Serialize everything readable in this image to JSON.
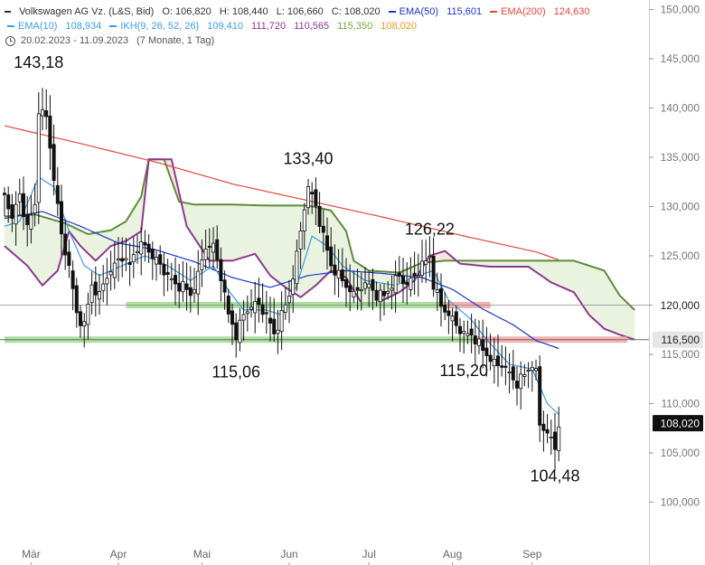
{
  "header": {
    "line1": {
      "instrument": "Volkswagen AG Vz. (L&S, Bid)",
      "open": "O: 106,820",
      "high": "H: 108,440",
      "low": "L: 106,660",
      "close": "C: 108,020",
      "ema50_label": "EMA(50)",
      "ema50_value": "115,601",
      "ema200_label": "EMA(200)",
      "ema200_value": "124,630"
    },
    "line2": {
      "ema10_label": "EMA(10)",
      "ema10_value": "108,934",
      "ikh_label": "IKH(9, 26, 52, 26)",
      "ikh_v1": "109,410",
      "ikh_v2": "111,720",
      "ikh_v3": "110,565",
      "ikh_v4": "115,350",
      "ikh_v5": "108,020"
    },
    "line3": {
      "range": "20.02.2023 - 11.09.2023",
      "period": "(7 Monate, 1 Tag)"
    }
  },
  "colors": {
    "ema10": "#3d9be9",
    "ema50": "#1a35c9",
    "ema200": "#e0483a",
    "ikh_tenkan": "#3d9be9",
    "ikh_span_a": "#5f8a3a",
    "ikh_span_b": "#8b3a8b",
    "ikh_v4": "#7aa637",
    "ikh_v5": "#e89a1e",
    "cloud_bull": "#e9f3df",
    "cloud_bear": "#fbe4e4",
    "support_green": "#9edb8f",
    "support_red": "#f4a5a5",
    "candle": "#111111"
  },
  "chart_data": {
    "type": "candlestick",
    "title": "Volkswagen AG Vz. (L&S, Bid)",
    "date_range": "20.02.2023 - 11.09.2023",
    "y_axis": {
      "ylim": [
        97,
        151
      ],
      "ticks": [
        100,
        105,
        110,
        115,
        120,
        125,
        130,
        135,
        140,
        145,
        150
      ],
      "tick_labels": [
        "100,000",
        "105,000",
        "110,000",
        "115,000",
        "120,000",
        "125,000",
        "130,000",
        "135,000",
        "140,000",
        "145,000",
        "150,000"
      ],
      "position": "right"
    },
    "x_axis": {
      "labels": [
        "Mär",
        "Apr",
        "Mai",
        "Jun",
        "Jul",
        "Aug",
        "Sep"
      ],
      "label_index": [
        7,
        30,
        52,
        75,
        96,
        118,
        139
      ]
    },
    "horizontal_lines": [
      {
        "value": 120.0,
        "label": "120,000",
        "style": "thin-gray"
      },
      {
        "value": 116.5,
        "label": "116,500",
        "style": "zone-gray"
      }
    ],
    "support_zones": [
      {
        "from_index": 32,
        "to_index": 118,
        "value": 120.0,
        "color": "green"
      },
      {
        "from_index": 116,
        "to_index": 128,
        "value": 120.0,
        "color": "red"
      },
      {
        "from_index": 0,
        "to_index": 124,
        "value": 116.5,
        "color": "green"
      },
      {
        "from_index": 124,
        "to_index": 164,
        "value": 116.5,
        "color": "red"
      }
    ],
    "current_price": {
      "value": 108.02,
      "label": "108,020"
    },
    "annotations": [
      {
        "label": "143,18",
        "index": 9,
        "value": 143.18,
        "position": "above"
      },
      {
        "label": "133,40",
        "index": 80,
        "value": 133.4,
        "position": "above"
      },
      {
        "label": "126,22",
        "index": 112,
        "value": 126.22,
        "position": "above"
      },
      {
        "label": "115,06",
        "index": 61,
        "value": 115.06,
        "position": "below"
      },
      {
        "label": "115,20",
        "index": 121,
        "value": 115.2,
        "position": "below"
      },
      {
        "label": "104,48",
        "index": 145,
        "value": 104.48,
        "position": "below"
      }
    ],
    "anchors": [
      [
        0,
        131
      ],
      [
        2,
        129
      ],
      [
        4,
        131
      ],
      [
        6,
        128
      ],
      [
        8,
        130
      ],
      [
        9,
        140
      ],
      [
        11,
        139
      ],
      [
        13,
        133
      ],
      [
        15,
        127
      ],
      [
        17,
        124
      ],
      [
        19,
        119
      ],
      [
        21,
        118
      ],
      [
        23,
        122
      ],
      [
        25,
        121
      ],
      [
        27,
        123
      ],
      [
        29,
        124
      ],
      [
        31,
        125
      ],
      [
        33,
        124
      ],
      [
        35,
        126
      ],
      [
        37,
        126
      ],
      [
        39,
        125
      ],
      [
        41,
        124
      ],
      [
        43,
        123
      ],
      [
        45,
        122
      ],
      [
        47,
        122
      ],
      [
        49,
        121
      ],
      [
        51,
        123
      ],
      [
        53,
        126
      ],
      [
        55,
        126
      ],
      [
        57,
        123
      ],
      [
        59,
        119
      ],
      [
        61,
        117
      ],
      [
        63,
        119
      ],
      [
        65,
        120
      ],
      [
        67,
        120
      ],
      [
        69,
        119
      ],
      [
        71,
        117
      ],
      [
        73,
        119
      ],
      [
        75,
        121
      ],
      [
        77,
        125
      ],
      [
        79,
        130
      ],
      [
        80,
        132
      ],
      [
        82,
        130
      ],
      [
        84,
        127
      ],
      [
        86,
        124
      ],
      [
        88,
        123
      ],
      [
        90,
        122
      ],
      [
        92,
        121
      ],
      [
        94,
        122
      ],
      [
        96,
        122
      ],
      [
        98,
        121
      ],
      [
        100,
        121
      ],
      [
        102,
        122
      ],
      [
        104,
        123
      ],
      [
        106,
        122
      ],
      [
        108,
        123
      ],
      [
        110,
        124
      ],
      [
        112,
        125
      ],
      [
        113,
        122
      ],
      [
        115,
        120
      ],
      [
        117,
        119
      ],
      [
        119,
        118
      ],
      [
        121,
        117
      ],
      [
        123,
        117
      ],
      [
        125,
        116
      ],
      [
        127,
        115
      ],
      [
        129,
        114
      ],
      [
        131,
        114
      ],
      [
        133,
        113
      ],
      [
        135,
        112
      ],
      [
        137,
        113
      ],
      [
        139,
        114
      ],
      [
        140,
        113
      ],
      [
        141,
        108
      ],
      [
        143,
        107
      ],
      [
        145,
        105.5
      ],
      [
        146,
        108
      ]
    ],
    "ema10_anchors": [
      [
        0,
        128
      ],
      [
        4,
        128.5
      ],
      [
        9,
        133
      ],
      [
        13,
        132
      ],
      [
        17,
        127.5
      ],
      [
        21,
        124
      ],
      [
        25,
        123
      ],
      [
        31,
        124
      ],
      [
        37,
        125
      ],
      [
        43,
        124
      ],
      [
        49,
        122.5
      ],
      [
        55,
        124
      ],
      [
        59,
        121.5
      ],
      [
        63,
        119.5
      ],
      [
        69,
        119.5
      ],
      [
        73,
        119
      ],
      [
        77,
        122
      ],
      [
        81,
        127
      ],
      [
        85,
        126
      ],
      [
        89,
        124
      ],
      [
        95,
        122.5
      ],
      [
        103,
        122
      ],
      [
        109,
        123
      ],
      [
        113,
        123.5
      ],
      [
        117,
        120.5
      ],
      [
        123,
        118.5
      ],
      [
        127,
        116.5
      ],
      [
        133,
        114
      ],
      [
        139,
        113.5
      ],
      [
        143,
        110
      ],
      [
        146,
        108.9
      ]
    ],
    "ema50_anchors": [
      [
        0,
        128.8
      ],
      [
        10,
        129.5
      ],
      [
        20,
        128
      ],
      [
        30,
        126.3
      ],
      [
        40,
        125.6
      ],
      [
        50,
        124.4
      ],
      [
        60,
        122.8
      ],
      [
        70,
        121.8
      ],
      [
        80,
        123
      ],
      [
        90,
        123.5
      ],
      [
        100,
        123.2
      ],
      [
        110,
        122.8
      ],
      [
        118,
        121.6
      ],
      [
        126,
        119.6
      ],
      [
        134,
        118
      ],
      [
        140,
        116.4
      ],
      [
        146,
        115.6
      ]
    ],
    "ema200_anchors": [
      [
        0,
        138.2
      ],
      [
        20,
        136.4
      ],
      [
        40,
        134.5
      ],
      [
        60,
        132.3
      ],
      [
        80,
        130.6
      ],
      [
        100,
        128.9
      ],
      [
        120,
        127.1
      ],
      [
        140,
        125.4
      ],
      [
        146,
        124.6
      ]
    ],
    "span_a_anchors": [
      [
        0,
        129
      ],
      [
        8,
        129.2
      ],
      [
        16,
        128.3
      ],
      [
        22,
        127.2
      ],
      [
        28,
        127.6
      ],
      [
        32,
        128.5
      ],
      [
        36,
        131
      ],
      [
        38,
        134.8
      ],
      [
        42,
        134.8
      ],
      [
        46,
        130.5
      ],
      [
        50,
        130.2
      ],
      [
        60,
        130.2
      ],
      [
        70,
        130.1
      ],
      [
        80,
        130.1
      ],
      [
        86,
        129.6
      ],
      [
        90,
        127.5
      ],
      [
        92,
        124.5
      ],
      [
        96,
        123.5
      ],
      [
        104,
        123.3
      ],
      [
        110,
        124.3
      ],
      [
        116,
        124.5
      ],
      [
        124,
        124.5
      ],
      [
        130,
        124.5
      ],
      [
        140,
        124.5
      ],
      [
        150,
        124.5
      ],
      [
        158,
        123.5
      ],
      [
        162,
        121
      ],
      [
        166,
        119.5
      ]
    ],
    "span_b_anchors": [
      [
        0,
        126
      ],
      [
        6,
        124
      ],
      [
        10,
        122
      ],
      [
        14,
        123.5
      ],
      [
        17,
        127.5
      ],
      [
        20,
        126
      ],
      [
        24,
        124.5
      ],
      [
        28,
        126
      ],
      [
        32,
        126.5
      ],
      [
        36,
        127.5
      ],
      [
        38,
        134.8
      ],
      [
        44,
        134.8
      ],
      [
        48,
        128
      ],
      [
        54,
        124.5
      ],
      [
        60,
        124.5
      ],
      [
        66,
        125.2
      ],
      [
        70,
        123
      ],
      [
        74,
        121.8
      ],
      [
        78,
        120.8
      ],
      [
        82,
        122
      ],
      [
        86,
        123.5
      ],
      [
        90,
        122.8
      ],
      [
        94,
        120.2
      ],
      [
        98,
        120.2
      ],
      [
        104,
        121.3
      ],
      [
        108,
        122.5
      ],
      [
        112,
        125
      ],
      [
        116,
        125.5
      ],
      [
        120,
        124.2
      ],
      [
        128,
        123.9
      ],
      [
        138,
        123.9
      ],
      [
        144,
        122.3
      ],
      [
        150,
        121.3
      ],
      [
        154,
        119
      ],
      [
        158,
        117.6
      ],
      [
        162,
        117
      ],
      [
        166,
        116.5
      ]
    ]
  }
}
